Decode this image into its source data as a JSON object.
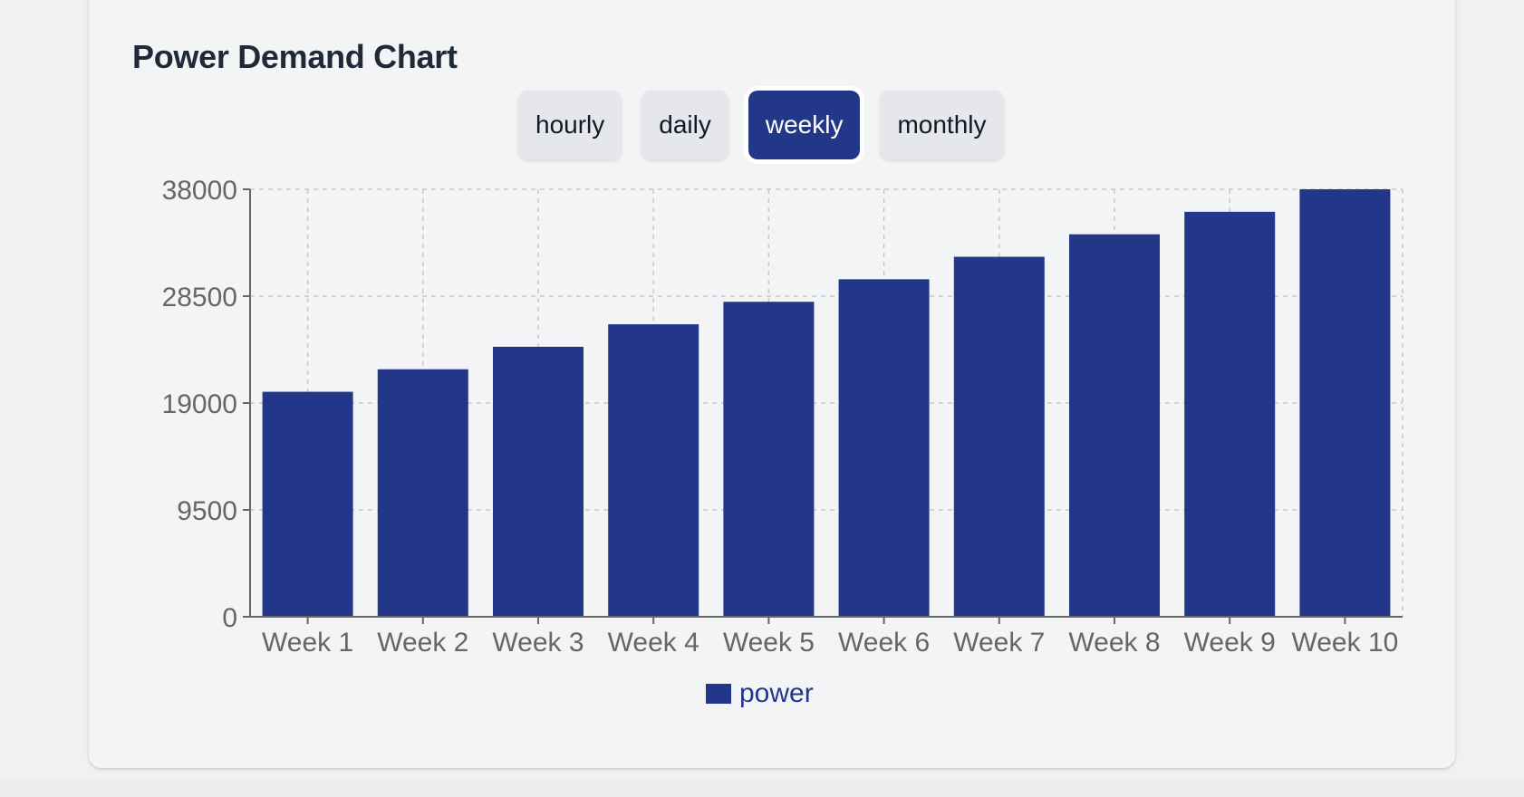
{
  "title": "Power Demand Chart",
  "tabs": [
    {
      "label": "hourly",
      "active": false
    },
    {
      "label": "daily",
      "active": false
    },
    {
      "label": "weekly",
      "active": true
    },
    {
      "label": "monthly",
      "active": false
    }
  ],
  "colors": {
    "bar": "#233789",
    "grid": "#c8c8c8",
    "axis": "#666666",
    "tick_text": "#666666"
  },
  "chart_data": {
    "type": "bar",
    "title": "",
    "xlabel": "",
    "ylabel": "",
    "categories": [
      "Week 1",
      "Week 2",
      "Week 3",
      "Week 4",
      "Week 5",
      "Week 6",
      "Week 7",
      "Week 8",
      "Week 9",
      "Week 10"
    ],
    "series": [
      {
        "name": "power",
        "values": [
          20000,
          22000,
          24000,
          26000,
          28000,
          30000,
          32000,
          34000,
          36000,
          38000
        ]
      }
    ],
    "ylim": [
      0,
      38000
    ],
    "yticks": [
      0,
      9500,
      19000,
      28500,
      38000
    ],
    "grid": true,
    "legend": "bottom"
  }
}
